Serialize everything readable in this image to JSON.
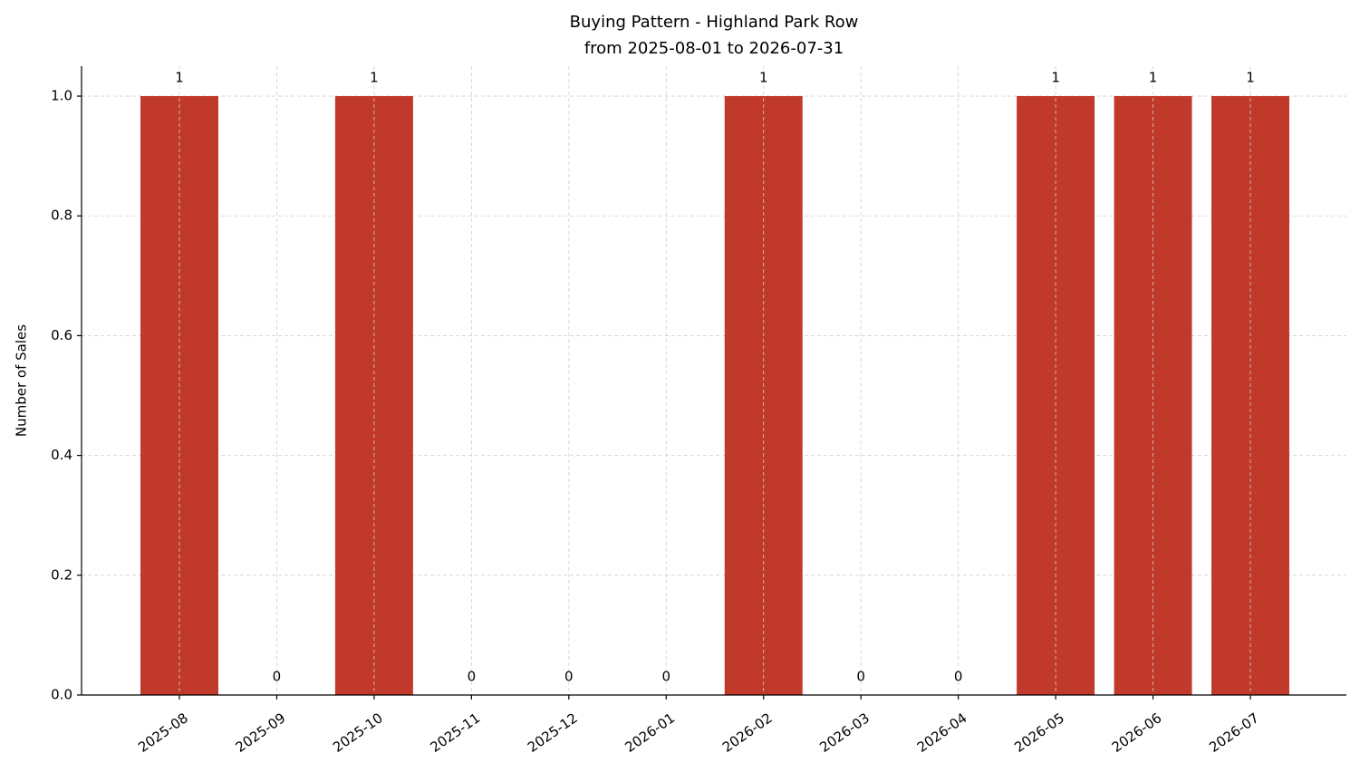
{
  "chart_data": {
    "type": "bar",
    "title": "Buying Pattern - Highland Park Row",
    "subtitle": "from 2025-08-01 to 2026-07-31",
    "y_label": "Number of Sales",
    "categories": [
      "2025-08",
      "2025-09",
      "2025-10",
      "2025-11",
      "2025-12",
      "2026-01",
      "2026-02",
      "2026-03",
      "2026-04",
      "2026-05",
      "2026-06",
      "2026-07"
    ],
    "values": [
      1,
      0,
      1,
      0,
      0,
      0,
      1,
      0,
      0,
      1,
      1,
      1
    ],
    "color": "#c0392b",
    "ylim": [
      0,
      1.05
    ],
    "yticks": [
      {
        "value": 0,
        "label": "0.0"
      },
      0.2,
      0.4,
      0.6,
      0.8,
      {
        "value": 1,
        "label": "1.0"
      }
    ],
    "grid": true
  }
}
